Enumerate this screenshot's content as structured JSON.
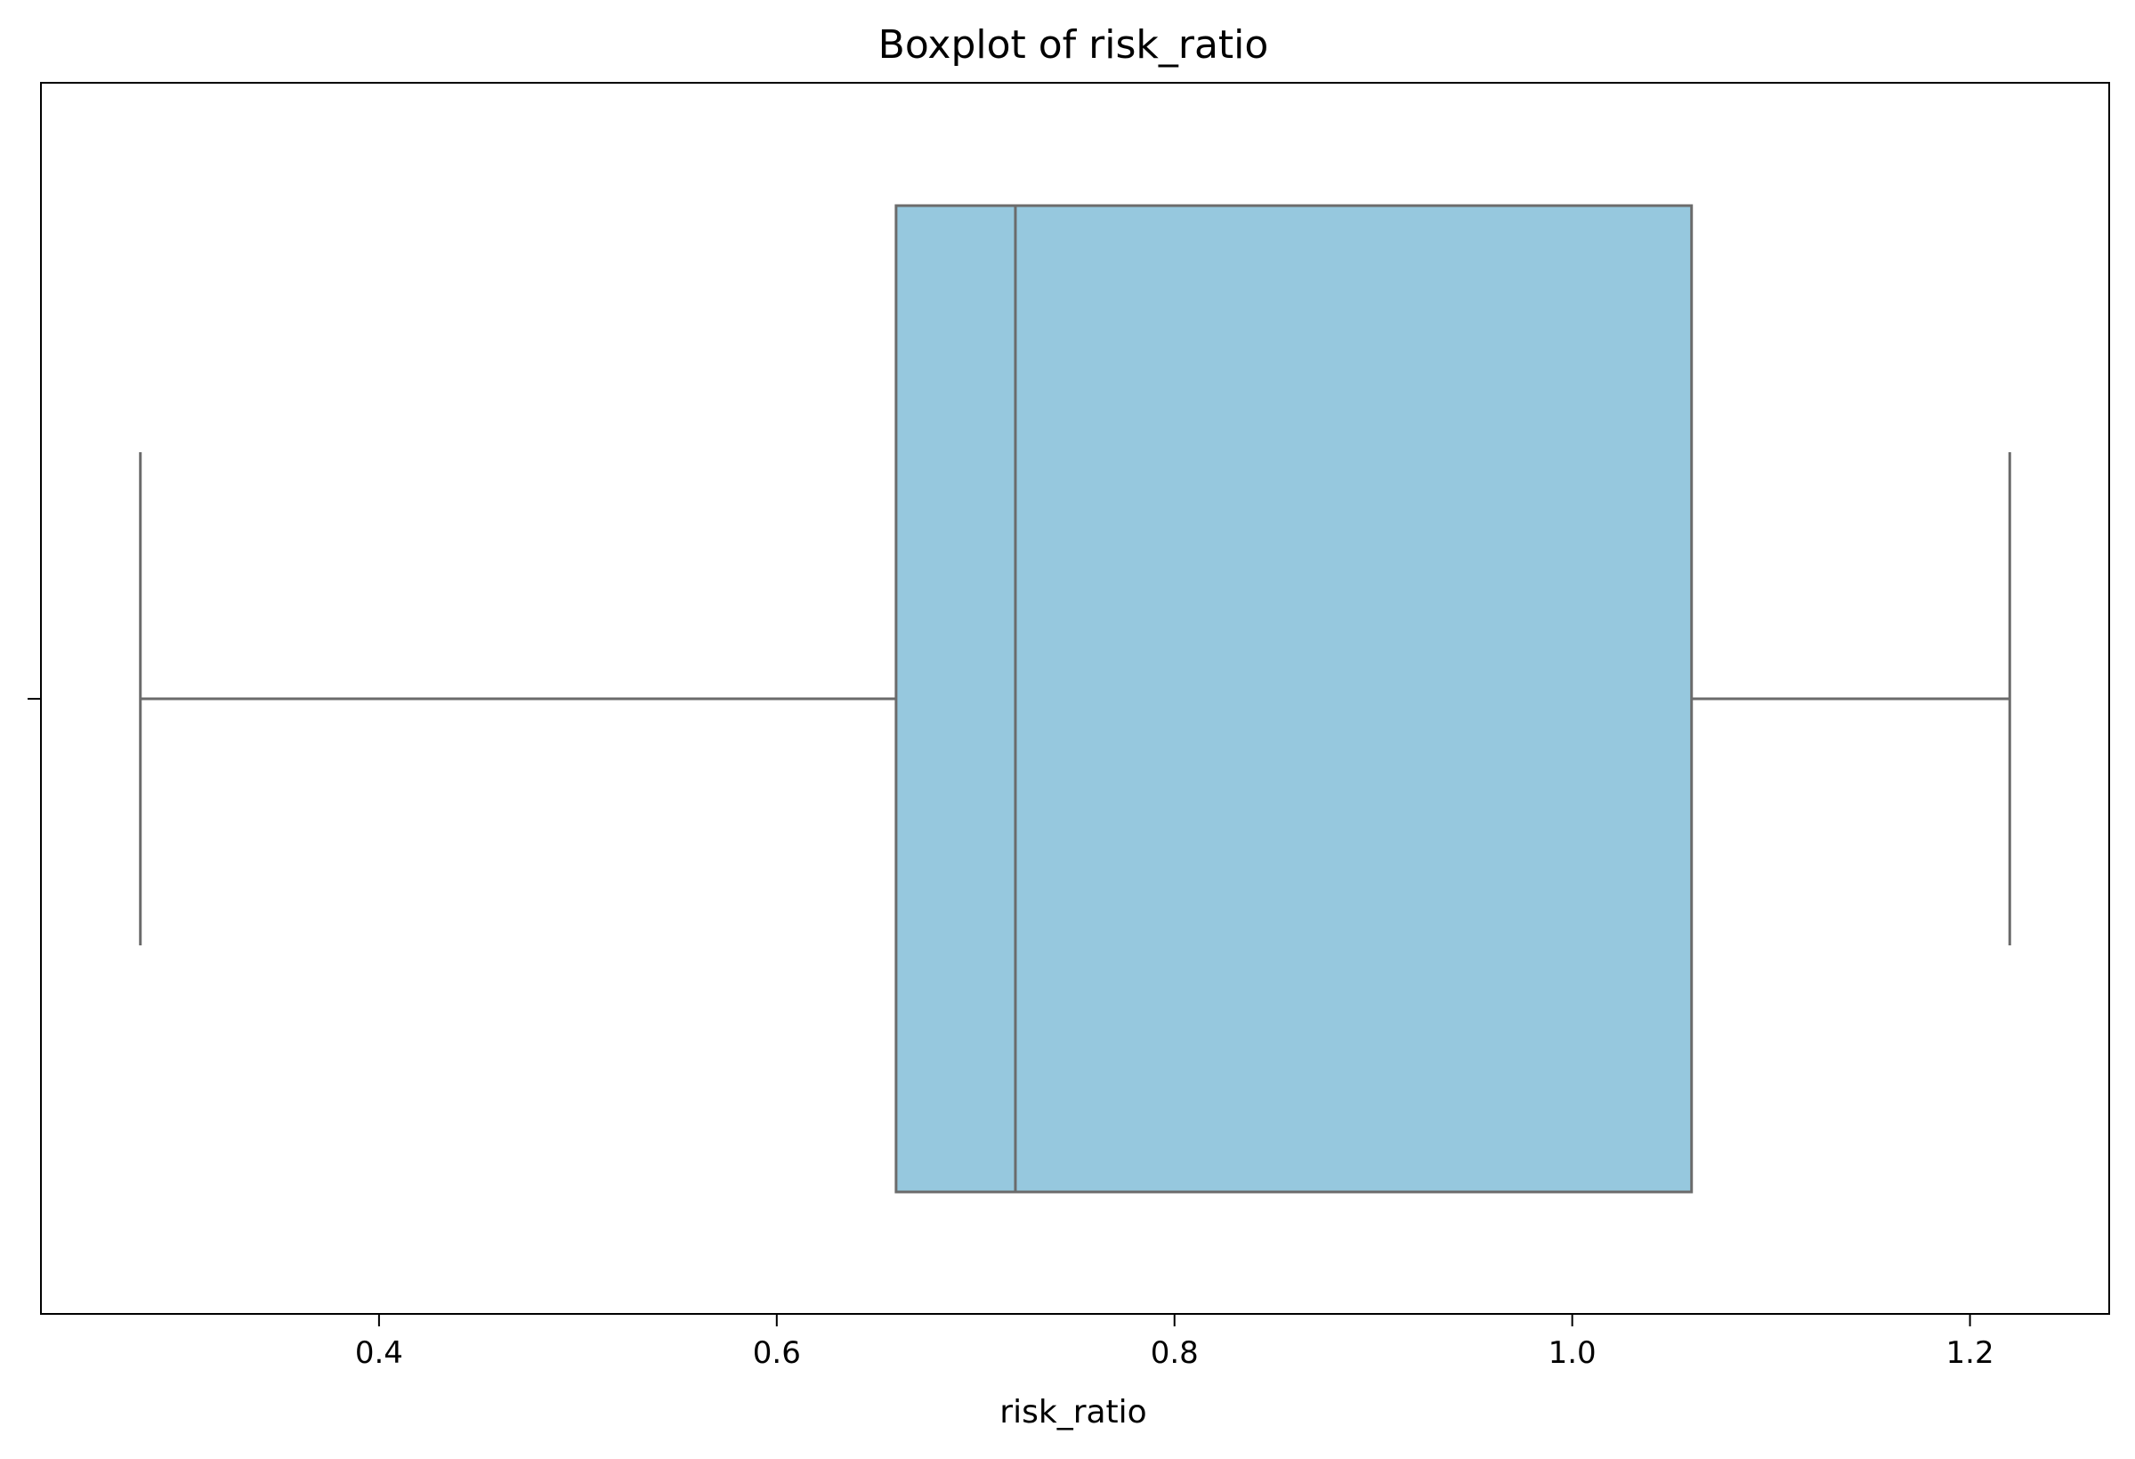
{
  "chart_data": {
    "type": "box",
    "title": "Boxplot of risk_ratio",
    "xlabel": "risk_ratio",
    "ylabel": "",
    "xlim": [
      0.23,
      1.27
    ],
    "xticks": [
      0.4,
      0.6,
      0.8,
      1.0,
      1.2
    ],
    "xtick_labels": [
      "0.4",
      "0.6",
      "0.8",
      "1.0",
      "1.2"
    ],
    "series": [
      {
        "whisker_low": 0.28,
        "q1": 0.66,
        "median": 0.72,
        "q3": 1.06,
        "whisker_high": 1.22
      }
    ],
    "box_color": "#96c8de",
    "line_color": "#6b6b6b",
    "grid": false,
    "orientation": "horizontal"
  }
}
